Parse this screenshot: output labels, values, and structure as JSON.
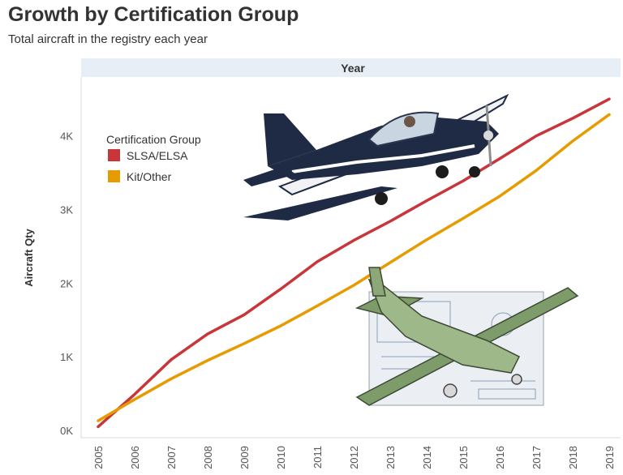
{
  "header": {
    "title": "Growth by Certification Group",
    "subtitle": "Total aircraft in the registry each year"
  },
  "chart_data": {
    "type": "line",
    "title": "Growth by Certification Group",
    "subtitle": "Total aircraft in the registry each year",
    "column_header": "Year",
    "xlabel": "Year",
    "ylabel": "Aircraft Qty",
    "x": [
      2005,
      2006,
      2007,
      2008,
      2009,
      2010,
      2011,
      2012,
      2013,
      2014,
      2015,
      2016,
      2017,
      2018,
      2019
    ],
    "x_tick_labels": [
      "2005",
      "2006",
      "2007",
      "2008",
      "2009",
      "2010",
      "2011",
      "2012",
      "2013",
      "2014",
      "2015",
      "2016",
      "2017",
      "2018",
      "2019"
    ],
    "y_ticks": [
      0,
      1000,
      2000,
      3000,
      4000
    ],
    "y_tick_labels": [
      "0K",
      "1K",
      "2K",
      "3K",
      "4K"
    ],
    "ylim": [
      -100,
      4800
    ],
    "grid": false,
    "legend": {
      "title": "Certification Group",
      "placement": "top-left"
    },
    "series": [
      {
        "name": "SLSA/ELSA",
        "color": "#c8353a",
        "values": [
          50,
          490,
          960,
          1310,
          1570,
          1920,
          2290,
          2580,
          2840,
          3120,
          3390,
          3690,
          4000,
          4240,
          4500
        ]
      },
      {
        "name": "Kit/Other",
        "color": "#e69b00",
        "values": [
          130,
          420,
          700,
          950,
          1180,
          1420,
          1690,
          1970,
          2280,
          2590,
          2880,
          3180,
          3530,
          3930,
          4290
        ]
      }
    ]
  },
  "images": {
    "top_plane": "rv-aircraft-photo",
    "bottom_plane": "kit-aircraft-blueprint"
  }
}
